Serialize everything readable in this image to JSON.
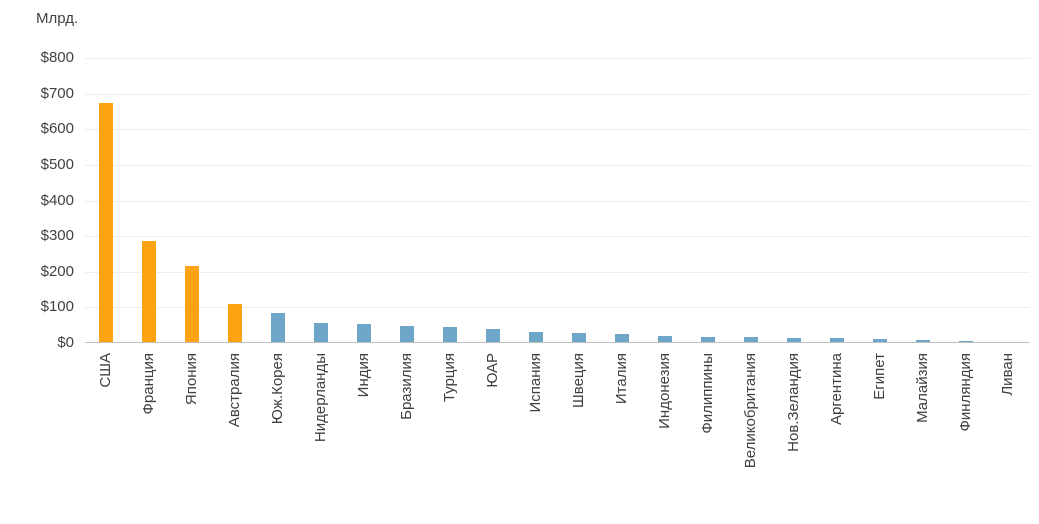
{
  "chart_data": {
    "type": "bar",
    "unit_label": "Млрд.",
    "categories": [
      "США",
      "Франция",
      "Япония",
      "Австралия",
      "Юж.Корея",
      "Нидерланды",
      "Индия",
      "Бразилия",
      "Турция",
      "ЮАР",
      "Испания",
      "Швеция",
      "Италия",
      "Индонезия",
      "Филиппины",
      "Великобритания",
      "Нов.Зеландия",
      "Аргентина",
      "Египет",
      "Малайзия",
      "Финляндия",
      "Ливан"
    ],
    "values": [
      675,
      285,
      215,
      110,
      84,
      57,
      52,
      48,
      44,
      39,
      31,
      29,
      25,
      20,
      18,
      16,
      15,
      13,
      10,
      8,
      7,
      2
    ],
    "highlight_count": 4,
    "ylim": [
      0,
      800
    ],
    "ytick_step": 100,
    "ytick_labels": [
      "$0",
      "$100",
      "$200",
      "$300",
      "$400",
      "$500",
      "$600",
      "$700",
      "$800"
    ],
    "legend": "none",
    "grid": "horizontal",
    "colors": {
      "highlight": "#FCA311",
      "default": "#6EA6C9",
      "gridline": "#EDEDED",
      "axis": "#BFBFBF",
      "text": "#404040"
    }
  }
}
